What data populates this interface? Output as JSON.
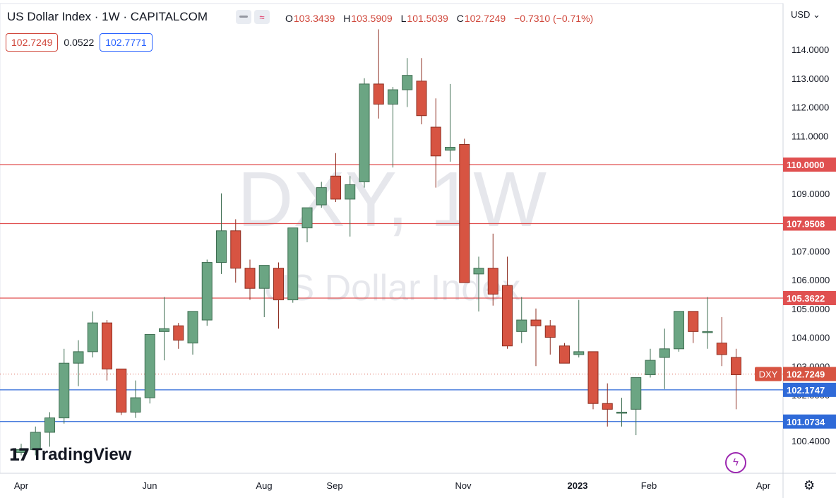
{
  "header": {
    "title": "US Dollar Index · 1W · CAPITALCOM",
    "ohlc": {
      "o": "103.3439",
      "h": "103.5909",
      "l": "101.5039",
      "c": "102.7249",
      "change": "−0.7310 (−0.71%)"
    },
    "ohlc_labels": {
      "o": "O",
      "h": "H",
      "l": "L",
      "c": "C"
    },
    "sell": "102.7249",
    "spread": "0.0522",
    "buy": "102.7771",
    "currency": "USD ⌄",
    "icons": [
      "minus-icon",
      "wave-icon"
    ]
  },
  "brand": {
    "mark": "17",
    "name": "TradingView"
  },
  "colors": {
    "up": "#6ba583",
    "down": "#d75442",
    "resistance": "#e05050",
    "support": "#2f6ad8",
    "watermark": "#d1d4dc"
  },
  "chart_data": {
    "type": "candlestick",
    "watermark": {
      "main": "DXY, 1W",
      "sub": "US Dollar Index"
    },
    "ylim": [
      99.9,
      114.7
    ],
    "y_ticks": [
      "114.0000",
      "113.0000",
      "112.0000",
      "111.0000",
      "110.0000",
      "109.0000",
      "107.0000",
      "106.0000",
      "105.0000",
      "104.0000",
      "103.0000",
      "102.0000",
      "101.0000",
      "100.4000"
    ],
    "x_ticks": [
      "Apr",
      "Jun",
      "Aug",
      "Sep",
      "Nov",
      "2023",
      "Feb",
      "Apr"
    ],
    "candles": [
      {
        "o": 100.0,
        "h": 100.3,
        "l": 99.9,
        "c": 100.1
      },
      {
        "o": 100.1,
        "h": 100.9,
        "l": 99.9,
        "c": 100.7
      },
      {
        "o": 100.7,
        "h": 101.4,
        "l": 100.2,
        "c": 101.2
      },
      {
        "o": 101.2,
        "h": 103.6,
        "l": 101.0,
        "c": 103.1
      },
      {
        "o": 103.1,
        "h": 103.9,
        "l": 102.3,
        "c": 103.5
      },
      {
        "o": 103.5,
        "h": 104.9,
        "l": 103.3,
        "c": 104.5
      },
      {
        "o": 104.5,
        "h": 104.6,
        "l": 102.5,
        "c": 102.9
      },
      {
        "o": 102.9,
        "h": 102.9,
        "l": 101.3,
        "c": 101.4
      },
      {
        "o": 101.4,
        "h": 102.5,
        "l": 101.2,
        "c": 101.9
      },
      {
        "o": 101.9,
        "h": 104.1,
        "l": 101.7,
        "c": 104.1
      },
      {
        "o": 104.2,
        "h": 105.4,
        "l": 103.2,
        "c": 104.3
      },
      {
        "o": 104.4,
        "h": 104.5,
        "l": 103.6,
        "c": 103.9
      },
      {
        "o": 103.8,
        "h": 104.9,
        "l": 103.4,
        "c": 104.9
      },
      {
        "o": 104.6,
        "h": 106.7,
        "l": 104.4,
        "c": 106.6
      },
      {
        "o": 106.6,
        "h": 109.0,
        "l": 106.2,
        "c": 107.7
      },
      {
        "o": 107.7,
        "h": 108.1,
        "l": 105.9,
        "c": 106.4
      },
      {
        "o": 106.4,
        "h": 106.7,
        "l": 105.3,
        "c": 105.7
      },
      {
        "o": 105.7,
        "h": 106.5,
        "l": 104.7,
        "c": 106.5
      },
      {
        "o": 106.4,
        "h": 106.6,
        "l": 104.3,
        "c": 105.3
      },
      {
        "o": 105.3,
        "h": 107.8,
        "l": 105.2,
        "c": 107.8
      },
      {
        "o": 107.8,
        "h": 108.4,
        "l": 107.3,
        "c": 108.5
      },
      {
        "o": 108.6,
        "h": 109.4,
        "l": 108.5,
        "c": 109.2
      },
      {
        "o": 109.6,
        "h": 110.4,
        "l": 108.7,
        "c": 108.8
      },
      {
        "o": 108.8,
        "h": 109.6,
        "l": 107.5,
        "c": 109.3
      },
      {
        "o": 109.4,
        "h": 113.0,
        "l": 109.2,
        "c": 112.8
      },
      {
        "o": 112.8,
        "h": 114.7,
        "l": 111.6,
        "c": 112.1
      },
      {
        "o": 112.1,
        "h": 112.7,
        "l": 109.9,
        "c": 112.6
      },
      {
        "o": 112.6,
        "h": 113.7,
        "l": 112.0,
        "c": 113.1
      },
      {
        "o": 112.9,
        "h": 113.7,
        "l": 111.4,
        "c": 111.7
      },
      {
        "o": 111.3,
        "h": 112.3,
        "l": 109.2,
        "c": 110.3
      },
      {
        "o": 110.5,
        "h": 112.8,
        "l": 110.1,
        "c": 110.6
      },
      {
        "o": 110.7,
        "h": 110.9,
        "l": 105.9,
        "c": 105.9
      },
      {
        "o": 106.2,
        "h": 106.8,
        "l": 104.9,
        "c": 106.4
      },
      {
        "o": 106.4,
        "h": 107.6,
        "l": 105.1,
        "c": 105.5
      },
      {
        "o": 105.8,
        "h": 106.8,
        "l": 103.6,
        "c": 103.7
      },
      {
        "o": 104.2,
        "h": 105.4,
        "l": 103.8,
        "c": 104.6
      },
      {
        "o": 104.6,
        "h": 105.0,
        "l": 103.0,
        "c": 104.4
      },
      {
        "o": 104.4,
        "h": 104.6,
        "l": 103.4,
        "c": 104.0
      },
      {
        "o": 103.7,
        "h": 103.8,
        "l": 103.1,
        "c": 103.1
      },
      {
        "o": 103.4,
        "h": 105.3,
        "l": 103.3,
        "c": 103.5
      },
      {
        "o": 103.5,
        "h": 103.5,
        "l": 101.5,
        "c": 101.7
      },
      {
        "o": 101.7,
        "h": 102.4,
        "l": 100.9,
        "c": 101.5
      },
      {
        "o": 101.4,
        "h": 101.9,
        "l": 100.9,
        "c": 101.4
      },
      {
        "o": 101.5,
        "h": 102.5,
        "l": 100.6,
        "c": 102.6
      },
      {
        "o": 102.7,
        "h": 103.6,
        "l": 102.6,
        "c": 103.2
      },
      {
        "o": 103.3,
        "h": 104.3,
        "l": 102.2,
        "c": 103.6
      },
      {
        "o": 103.6,
        "h": 104.9,
        "l": 103.5,
        "c": 104.9
      },
      {
        "o": 104.9,
        "h": 104.9,
        "l": 103.8,
        "c": 104.2
      },
      {
        "o": 104.2,
        "h": 105.4,
        "l": 103.6,
        "c": 104.2
      },
      {
        "o": 103.8,
        "h": 104.7,
        "l": 103.0,
        "c": 103.4
      },
      {
        "o": 103.3,
        "h": 103.6,
        "l": 101.5,
        "c": 102.7
      }
    ],
    "levels": [
      {
        "value": 110.0,
        "label": "110.0000",
        "kind": "resistance"
      },
      {
        "value": 107.9508,
        "label": "107.9508",
        "kind": "resistance"
      },
      {
        "value": 105.3622,
        "label": "105.3622",
        "kind": "resistance"
      },
      {
        "value": 102.1747,
        "label": "102.1747",
        "kind": "support"
      },
      {
        "value": 101.0734,
        "label": "101.0734",
        "kind": "support"
      }
    ],
    "last_price": {
      "value": 102.7249,
      "label": "102.7249",
      "symbol": "DXY"
    }
  }
}
